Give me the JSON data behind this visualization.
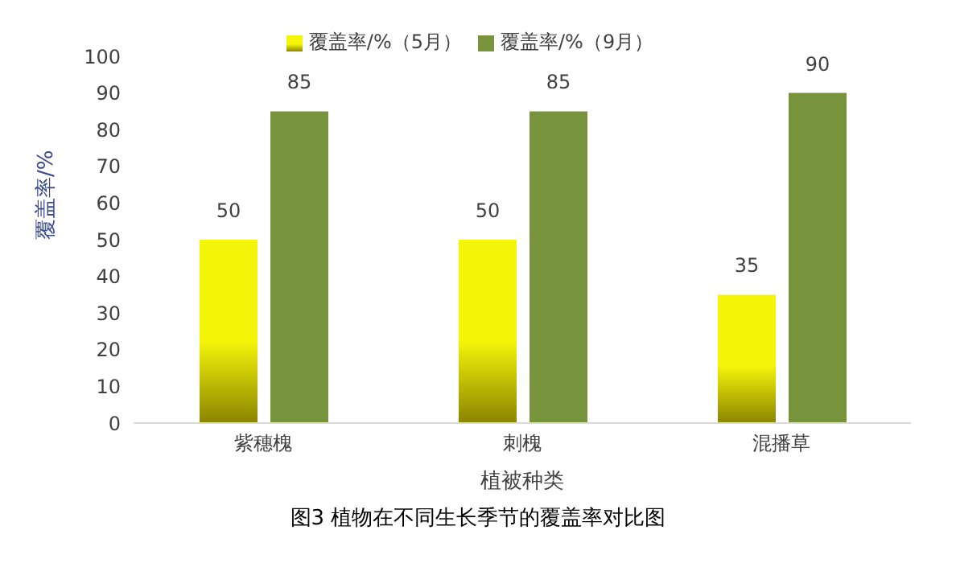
{
  "chart_data": {
    "type": "bar",
    "title": "图3 植物在不同生长季节的覆盖率对比图",
    "xlabel": "植被种类",
    "ylabel": "覆盖率/%",
    "categories": [
      "紫穗槐",
      "刺槐",
      "混播草"
    ],
    "series": [
      {
        "name": "覆盖率/%（5月）",
        "color": "#f5f50a",
        "values": [
          50,
          50,
          35
        ]
      },
      {
        "name": "覆盖率/%（9月）",
        "color": "#77933c",
        "values": [
          85,
          85,
          90
        ]
      }
    ],
    "ylim": [
      0,
      100
    ],
    "yticks": [
      0,
      10,
      20,
      30,
      40,
      50,
      60,
      70,
      80,
      90,
      100
    ],
    "grid": false,
    "legend": "top",
    "data_labels": true
  }
}
